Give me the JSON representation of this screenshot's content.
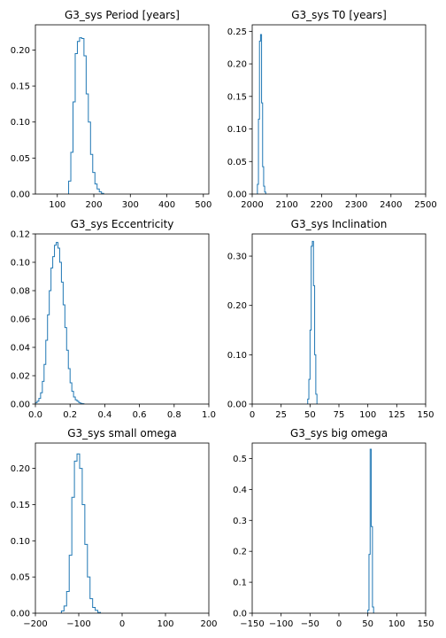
{
  "colors": {
    "series": "#1f77b4",
    "axes": "#000000",
    "background": "#ffffff"
  },
  "chart_data": [
    {
      "type": "histogram",
      "title": "G3_sys Period [years]",
      "xlim": [
        40,
        515
      ],
      "ylim": [
        0,
        0.235
      ],
      "xticks": [
        100,
        200,
        300,
        400,
        500
      ],
      "yticks": [
        0.0,
        0.05,
        0.1,
        0.15,
        0.2
      ],
      "ytick_labels": [
        "0.00",
        "0.05",
        "0.10",
        "0.15",
        "0.20"
      ],
      "bin_edges": [
        131,
        137,
        143,
        149,
        155,
        161,
        167,
        173,
        179,
        185,
        191,
        197,
        203,
        209,
        215,
        221,
        227
      ],
      "counts": [
        0.018,
        0.058,
        0.128,
        0.195,
        0.212,
        0.217,
        0.216,
        0.192,
        0.139,
        0.1,
        0.055,
        0.03,
        0.014,
        0.007,
        0.003,
        0.001
      ]
    },
    {
      "type": "histogram",
      "title": "G3_sys T0 [years]",
      "xlim": [
        2000,
        2500
      ],
      "ylim": [
        0,
        0.26
      ],
      "xticks": [
        2000,
        2100,
        2200,
        2300,
        2400,
        2500
      ],
      "yticks": [
        0.0,
        0.05,
        0.1,
        0.15,
        0.2,
        0.25
      ],
      "ytick_labels": [
        "0.00",
        "0.05",
        "0.10",
        "0.15",
        "0.20",
        "0.25"
      ],
      "bin_edges": [
        2015,
        2018,
        2021,
        2024,
        2027,
        2030,
        2033,
        2036,
        2039
      ],
      "counts": [
        0.015,
        0.115,
        0.235,
        0.245,
        0.14,
        0.042,
        0.012,
        0.003
      ]
    },
    {
      "type": "histogram",
      "title": "G3_sys Eccentricity",
      "xlim": [
        0,
        1.0
      ],
      "ylim": [
        0,
        0.12
      ],
      "xticks": [
        0.0,
        0.2,
        0.4,
        0.6,
        0.8,
        1.0
      ],
      "xtick_labels": [
        "0.0",
        "0.2",
        "0.4",
        "0.6",
        "0.8",
        "1.0"
      ],
      "yticks": [
        0.0,
        0.02,
        0.04,
        0.06,
        0.08,
        0.1,
        0.12
      ],
      "ytick_labels": [
        "0.00",
        "0.02",
        "0.04",
        "0.06",
        "0.08",
        "0.10",
        "0.12"
      ],
      "bin_edges": [
        0.0,
        0.01,
        0.02,
        0.03,
        0.04,
        0.05,
        0.06,
        0.07,
        0.08,
        0.09,
        0.1,
        0.11,
        0.12,
        0.13,
        0.14,
        0.15,
        0.16,
        0.17,
        0.18,
        0.19,
        0.2,
        0.21,
        0.22,
        0.23,
        0.24,
        0.25,
        0.26,
        0.27,
        0.28
      ],
      "counts": [
        0.001,
        0.002,
        0.004,
        0.008,
        0.016,
        0.028,
        0.045,
        0.063,
        0.08,
        0.096,
        0.104,
        0.112,
        0.114,
        0.11,
        0.1,
        0.086,
        0.07,
        0.054,
        0.038,
        0.025,
        0.015,
        0.009,
        0.005,
        0.003,
        0.002,
        0.001,
        0.0005,
        0.0002
      ]
    },
    {
      "type": "histogram",
      "title": "G3_sys Inclination",
      "xlim": [
        0,
        150
      ],
      "ylim": [
        0,
        0.345
      ],
      "xticks": [
        0,
        25,
        50,
        75,
        100,
        125,
        150
      ],
      "yticks": [
        0.0,
        0.1,
        0.2,
        0.3
      ],
      "ytick_labels": [
        "0.00",
        "0.10",
        "0.20",
        "0.30"
      ],
      "bin_edges": [
        48,
        49,
        50,
        51,
        52,
        53,
        54,
        55,
        56
      ],
      "counts": [
        0.01,
        0.05,
        0.15,
        0.32,
        0.33,
        0.24,
        0.1,
        0.02
      ]
    },
    {
      "type": "histogram",
      "title": "G3_sys small omega",
      "xlim": [
        -200,
        200
      ],
      "ylim": [
        0,
        0.235
      ],
      "xticks": [
        -200,
        -100,
        0,
        100,
        200
      ],
      "xtick_labels": [
        "−200",
        "−100",
        "0",
        "100",
        "200"
      ],
      "yticks": [
        0.0,
        0.05,
        0.1,
        0.15,
        0.2
      ],
      "ytick_labels": [
        "0.00",
        "0.05",
        "0.10",
        "0.15",
        "0.20"
      ],
      "bin_edges": [
        -140,
        -134,
        -128,
        -122,
        -116,
        -110,
        -104,
        -98,
        -92,
        -86,
        -80,
        -74,
        -68,
        -62,
        -56,
        -50
      ],
      "counts": [
        0.003,
        0.01,
        0.03,
        0.08,
        0.16,
        0.21,
        0.22,
        0.2,
        0.15,
        0.095,
        0.05,
        0.02,
        0.008,
        0.004,
        0.001
      ]
    },
    {
      "type": "histogram",
      "title": "G3_sys big omega",
      "xlim": [
        -150,
        150
      ],
      "ylim": [
        0,
        0.55
      ],
      "xticks": [
        -150,
        -100,
        -50,
        0,
        50,
        100,
        150
      ],
      "xtick_labels": [
        "−150",
        "−100",
        "−50",
        "0",
        "50",
        "100",
        "150"
      ],
      "yticks": [
        0.0,
        0.1,
        0.2,
        0.3,
        0.4,
        0.5
      ],
      "ytick_labels": [
        "0.0",
        "0.1",
        "0.2",
        "0.3",
        "0.4",
        "0.5"
      ],
      "bin_edges": [
        50,
        52,
        54,
        56,
        58,
        60
      ],
      "counts": [
        0.01,
        0.19,
        0.53,
        0.28,
        0.02
      ]
    }
  ]
}
